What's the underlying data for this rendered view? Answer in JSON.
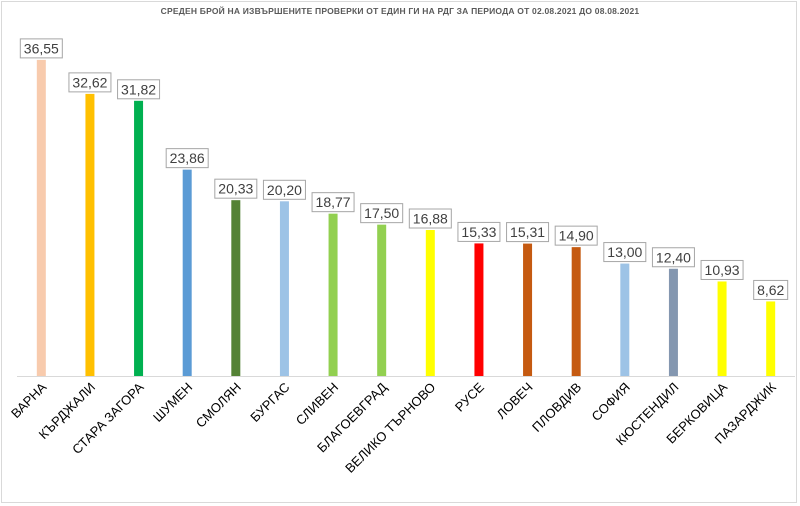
{
  "chart_data": {
    "type": "bar",
    "title": "СРЕДЕН БРОЙ НА ИЗВЪРШЕНИТЕ ПРОВЕРКИ ОТ ЕДИН ГИ НА РДГ ЗА ПЕРИОДА ОТ 02.08.2021 ДО 08.08.2021",
    "categories": [
      "ВАРНА",
      "КЪРДЖАЛИ",
      "СТАРА ЗАГОРА",
      "ШУМЕН",
      "СМОЛЯН",
      "БУРГАС",
      "СЛИВЕН",
      "БЛАГОЕВГРАД",
      "ВЕЛИКО ТЪРНОВО",
      "РУСЕ",
      "ЛОВЕЧ",
      "ПЛОВДИВ",
      "СОФИЯ",
      "КЮСТЕНДИЛ",
      "БЕРКОВИЦА",
      "ПАЗАРДЖИК"
    ],
    "values": [
      36.55,
      32.62,
      31.82,
      23.86,
      20.33,
      20.2,
      18.77,
      17.5,
      16.88,
      15.33,
      15.31,
      14.9,
      13.0,
      12.4,
      10.93,
      8.62
    ],
    "value_labels": [
      "36,55",
      "32,62",
      "31,82",
      "23,86",
      "20,33",
      "20,20",
      "18,77",
      "17,50",
      "16,88",
      "15,33",
      "15,31",
      "14,90",
      "13,00",
      "12,40",
      "10,93",
      "8,62"
    ],
    "colors": [
      "#f8cbad",
      "#ffc000",
      "#00b050",
      "#5b9bd5",
      "#548235",
      "#9dc3e6",
      "#92d050",
      "#92d050",
      "#ffff00",
      "#ff0000",
      "#c55a11",
      "#c55a11",
      "#9dc3e6",
      "#8497b0",
      "#ffff00",
      "#ffff00"
    ],
    "ylim": [
      0,
      37
    ],
    "grid": false,
    "legend": "none"
  }
}
